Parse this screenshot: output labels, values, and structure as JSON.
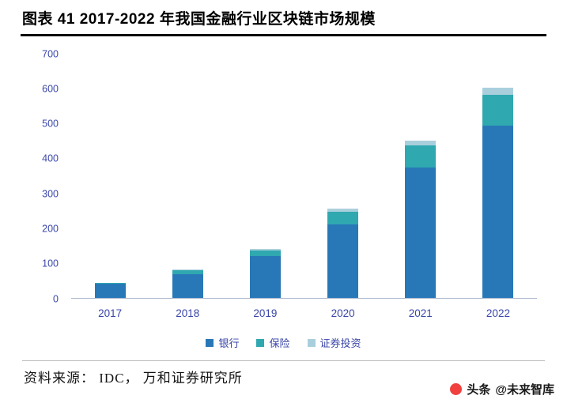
{
  "page": {
    "title": "图表 41  2017-2022 年我国金融行业区块链市场规模"
  },
  "chart_data": {
    "type": "bar",
    "stacked": true,
    "title": "2017-2022 年我国金融行业区块链市场规模",
    "categories": [
      "2017",
      "2018",
      "2019",
      "2020",
      "2021",
      "2022"
    ],
    "series": [
      {
        "name": "银行",
        "color": "#2878b8",
        "values": [
          42,
          70,
          121,
          213,
          376,
          494
        ]
      },
      {
        "name": "保险",
        "color": "#2fa8b0",
        "values": [
          3,
          11,
          17,
          36,
          63,
          88
        ]
      },
      {
        "name": "证券投资",
        "color": "#aacfdc",
        "values": [
          1,
          3,
          5,
          8,
          13,
          20
        ]
      }
    ],
    "xlabel": "",
    "ylabel": "",
    "ylim": [
      0,
      700
    ],
    "ytick_step": 100,
    "grid": false,
    "legend_position": "bottom",
    "axis_label_color": "#3a46a8",
    "baseline_color": "#a9b6cc"
  },
  "footer": {
    "source": "资料来源： IDC， 万和证券研究所"
  },
  "watermark": {
    "icon": "toutiao-icon",
    "brand": "头条",
    "handle": "@未来智库"
  }
}
